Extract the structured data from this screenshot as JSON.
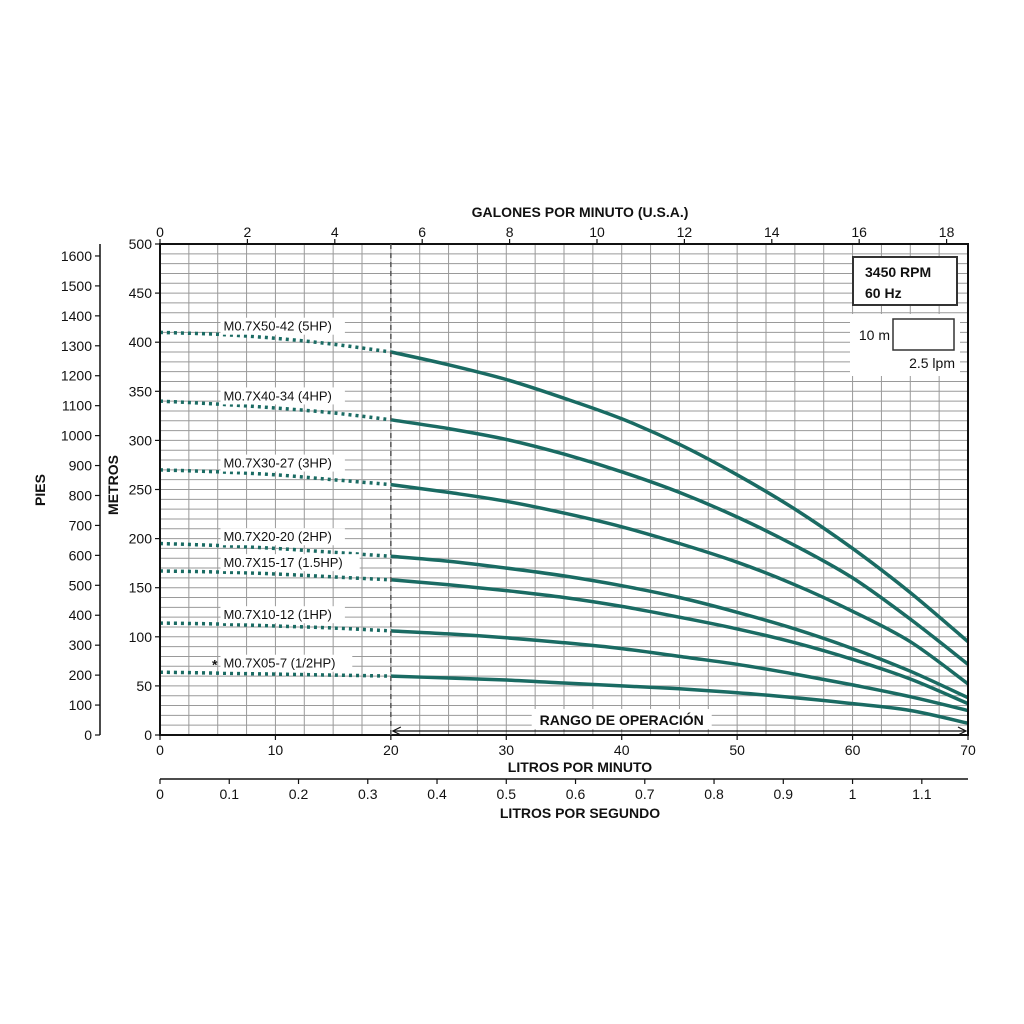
{
  "chart_data": {
    "type": "line",
    "rpm_box": {
      "line1": "3450 RPM",
      "line2": "60 Hz"
    },
    "grid_legend": {
      "vertical": "10 m",
      "horizontal": "2.5 lpm"
    },
    "axes": {
      "bottom": {
        "label": "LITROS POR MINUTO",
        "range": [
          0,
          70
        ],
        "ticks": [
          0,
          10,
          20,
          30,
          40,
          50,
          60,
          70
        ]
      },
      "lps": {
        "label": "LITROS POR SEGUNDO",
        "range": [
          0,
          1.1667
        ],
        "ticks": [
          0,
          0.1,
          0.2,
          0.3,
          0.4,
          0.5,
          0.6,
          0.7,
          0.8,
          0.9,
          1,
          1.1
        ]
      },
      "top": {
        "label": "GALONES POR MINUTO (U.S.A.)",
        "range": [
          0,
          18.49
        ],
        "ticks": [
          0,
          2,
          4,
          6,
          8,
          10,
          12,
          14,
          16,
          18
        ]
      },
      "left_meters": {
        "label": "METROS",
        "range": [
          0,
          500
        ],
        "ticks": [
          0,
          50,
          100,
          150,
          200,
          250,
          300,
          350,
          400,
          450,
          500
        ]
      },
      "left_feet": {
        "label": "PIES",
        "range": [
          0,
          1640
        ],
        "ticks": [
          0,
          100,
          200,
          300,
          400,
          500,
          600,
          700,
          800,
          900,
          1000,
          1100,
          1200,
          1300,
          1400,
          1500,
          1600
        ]
      }
    },
    "operating_range": {
      "label": "RANGO DE OPERACIÓN",
      "from": 20,
      "to": 70
    },
    "series": [
      {
        "name": "M0.7X50-42 (5HP)",
        "x": [
          0,
          5,
          10,
          15,
          20,
          25,
          30,
          35,
          40,
          45,
          50,
          55,
          60,
          65,
          70
        ],
        "y": [
          410,
          408,
          404,
          398,
          390,
          377,
          362,
          343,
          322,
          296,
          265,
          230,
          190,
          145,
          95
        ]
      },
      {
        "name": "M0.7X40-34 (4HP)",
        "x": [
          0,
          5,
          10,
          15,
          20,
          25,
          30,
          35,
          40,
          45,
          50,
          55,
          60,
          65,
          70
        ],
        "y": [
          340,
          337,
          333,
          328,
          321,
          312,
          301,
          286,
          268,
          247,
          222,
          193,
          160,
          118,
          72
        ]
      },
      {
        "name": "M0.7X30-27 (3HP)",
        "x": [
          0,
          5,
          10,
          15,
          20,
          25,
          30,
          35,
          40,
          45,
          50,
          55,
          60,
          65,
          70
        ],
        "y": [
          270,
          268,
          265,
          260,
          255,
          247,
          238,
          226,
          212,
          195,
          176,
          153,
          126,
          95,
          52
        ]
      },
      {
        "name": "M0.7X20-20 (2HP)",
        "x": [
          0,
          5,
          10,
          15,
          20,
          25,
          30,
          35,
          40,
          45,
          50,
          55,
          60,
          65,
          70
        ],
        "y": [
          195,
          193,
          190,
          186,
          182,
          177,
          170,
          162,
          152,
          140,
          125,
          108,
          88,
          65,
          38
        ]
      },
      {
        "name": "M0.7X15-17 (1.5HP)",
        "x": [
          0,
          5,
          10,
          15,
          20,
          25,
          30,
          35,
          40,
          45,
          50,
          55,
          60,
          65,
          70
        ],
        "y": [
          167,
          166,
          164,
          161,
          158,
          153,
          147,
          140,
          131,
          120,
          108,
          94,
          77,
          57,
          32
        ]
      },
      {
        "name": "M0.7X10-12 (1HP)",
        "x": [
          0,
          5,
          10,
          15,
          20,
          25,
          30,
          35,
          40,
          45,
          50,
          55,
          60,
          65,
          70
        ],
        "y": [
          114,
          113,
          111,
          109,
          106,
          103,
          99,
          94,
          88,
          80,
          72,
          62,
          51,
          39,
          25
        ]
      },
      {
        "name": "M0.7X05-7 (1/2HP)",
        "marker": "*",
        "x": [
          0,
          5,
          10,
          15,
          20,
          25,
          30,
          35,
          40,
          45,
          50,
          55,
          60,
          65,
          70
        ],
        "y": [
          64,
          63,
          62,
          61,
          60,
          58,
          56,
          53,
          50,
          47,
          43,
          38,
          32,
          25,
          12
        ]
      }
    ],
    "colors": {
      "curve": "#1a6b63",
      "grid": "#9a9a9a",
      "star": "#5cb85c"
    }
  }
}
